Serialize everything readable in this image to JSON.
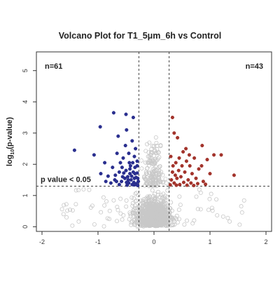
{
  "chart_data": {
    "type": "scatter",
    "title": "Volcano Plot for T1_5μm_6h vs Control",
    "xlabel": "",
    "ylabel_main": "log",
    "ylabel_sub": "10",
    "ylabel_rest": "(p-value)",
    "xlim": [
      -2.1,
      2.1
    ],
    "ylim": [
      -0.15,
      5.6
    ],
    "x_ticks": [
      -2,
      -1,
      0,
      1,
      2
    ],
    "y_ticks": [
      0,
      1,
      2,
      3,
      4,
      5
    ],
    "thresholds": {
      "x": [
        -0.27,
        0.27
      ],
      "y": 1.3
    },
    "annotations": {
      "left_count": "n=61",
      "right_count": "n=43",
      "pvalue_label": "p value < 0.05"
    },
    "colors": {
      "down": "#2a2f8f",
      "up": "#a3342c",
      "ns": "#c8c8c8",
      "axis": "#333333"
    },
    "series": [
      {
        "values_note": "down",
        "points": [
          [
            -1.42,
            2.45
          ],
          [
            -1.07,
            2.3
          ],
          [
            -0.96,
            3.2
          ],
          [
            -0.72,
            3.65
          ],
          [
            -0.5,
            3.6
          ],
          [
            -0.37,
            3.5
          ],
          [
            -0.64,
            2.9
          ],
          [
            -0.49,
            3.1
          ],
          [
            -0.39,
            2.75
          ],
          [
            -0.33,
            2.5
          ],
          [
            -0.88,
            2.05
          ],
          [
            -0.74,
            1.9
          ],
          [
            -0.62,
            1.75
          ],
          [
            -0.55,
            2.2
          ],
          [
            -0.47,
            1.6
          ],
          [
            -0.43,
            1.85
          ],
          [
            -0.38,
            2.05
          ],
          [
            -0.34,
            1.7
          ],
          [
            -0.3,
            1.95
          ],
          [
            -0.29,
            1.55
          ],
          [
            -0.7,
            1.5
          ],
          [
            -0.58,
            1.45
          ],
          [
            -0.52,
            1.55
          ],
          [
            -0.45,
            1.4
          ],
          [
            -0.41,
            1.5
          ],
          [
            -0.36,
            1.42
          ],
          [
            -0.31,
            1.38
          ],
          [
            -0.82,
            1.62
          ],
          [
            -0.66,
            2.35
          ],
          [
            -0.51,
            2.6
          ],
          [
            -0.45,
            2.35
          ],
          [
            -0.35,
            2.25
          ],
          [
            -0.3,
            2.1
          ],
          [
            -0.62,
            1.35
          ],
          [
            -0.48,
            1.33
          ],
          [
            -0.4,
            1.62
          ],
          [
            -0.33,
            1.35
          ],
          [
            -0.28,
            1.45
          ],
          [
            -0.57,
            1.9
          ],
          [
            -0.44,
            2.05
          ],
          [
            -0.37,
            1.75
          ],
          [
            -0.32,
            1.58
          ],
          [
            -0.95,
            1.7
          ],
          [
            -0.77,
            1.4
          ],
          [
            -0.69,
            1.65
          ],
          [
            -0.54,
            1.72
          ],
          [
            -0.42,
            1.95
          ],
          [
            -0.35,
            1.55
          ],
          [
            -0.3,
            1.72
          ],
          [
            -0.6,
            2.05
          ],
          [
            -0.5,
            1.8
          ],
          [
            -0.46,
            1.5
          ],
          [
            -0.39,
            1.35
          ],
          [
            -0.34,
            1.9
          ],
          [
            -0.29,
            1.32
          ],
          [
            -0.86,
            1.45
          ],
          [
            -0.67,
            1.45
          ],
          [
            -0.56,
            1.6
          ],
          [
            -0.49,
            1.42
          ],
          [
            -0.43,
            1.7
          ],
          [
            -0.36,
            1.34
          ]
        ]
      },
      {
        "values_note": "up",
        "points": [
          [
            0.33,
            3.5
          ],
          [
            0.36,
            3.0
          ],
          [
            0.42,
            2.85
          ],
          [
            0.52,
            2.4
          ],
          [
            0.58,
            2.1
          ],
          [
            0.63,
            2.3
          ],
          [
            0.72,
            2.2
          ],
          [
            0.86,
            2.6
          ],
          [
            0.95,
            2.15
          ],
          [
            1.07,
            2.3
          ],
          [
            1.2,
            2.3
          ],
          [
            1.43,
            1.65
          ],
          [
            0.3,
            2.25
          ],
          [
            0.34,
            1.95
          ],
          [
            0.39,
            2.05
          ],
          [
            0.44,
            1.8
          ],
          [
            0.48,
            1.6
          ],
          [
            0.55,
            1.75
          ],
          [
            0.61,
            1.5
          ],
          [
            0.68,
            1.7
          ],
          [
            0.75,
            1.55
          ],
          [
            0.8,
            1.85
          ],
          [
            0.88,
            1.45
          ],
          [
            1.0,
            1.7
          ],
          [
            0.31,
            1.5
          ],
          [
            0.36,
            1.4
          ],
          [
            0.41,
            1.55
          ],
          [
            0.46,
            1.35
          ],
          [
            0.53,
            1.42
          ],
          [
            0.59,
            1.33
          ],
          [
            0.66,
            1.4
          ],
          [
            0.71,
            1.32
          ],
          [
            0.78,
            1.38
          ],
          [
            0.92,
            1.36
          ],
          [
            0.33,
            1.75
          ],
          [
            0.38,
            1.65
          ],
          [
            0.45,
            2.2
          ],
          [
            0.5,
            1.95
          ],
          [
            0.57,
            2.5
          ],
          [
            0.64,
            1.95
          ],
          [
            0.29,
            1.34
          ],
          [
            0.4,
            1.33
          ],
          [
            0.85,
            1.95
          ]
        ]
      }
    ]
  }
}
